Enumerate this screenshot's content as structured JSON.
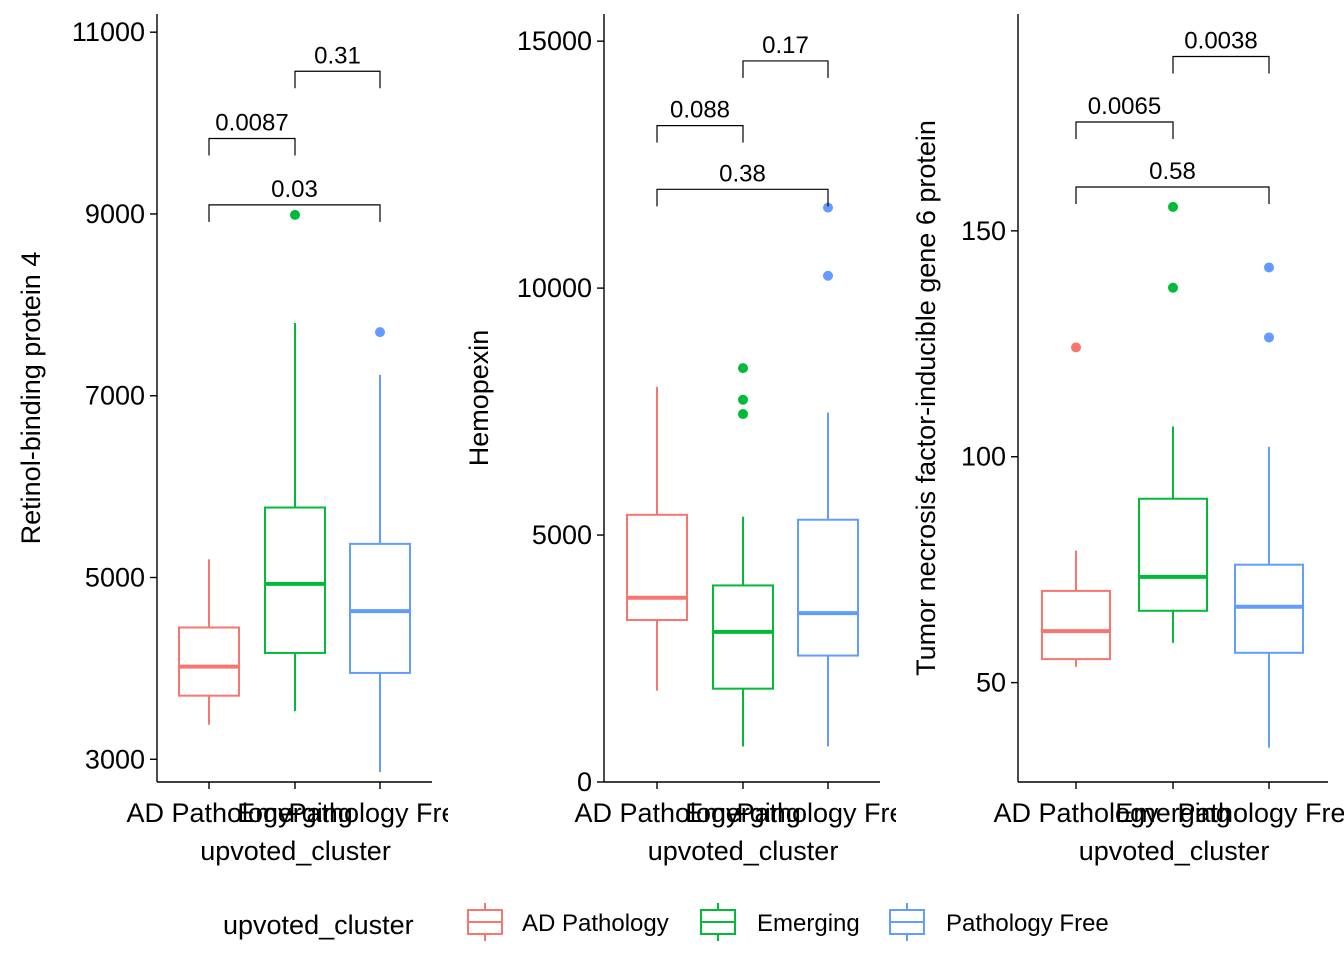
{
  "chart_data": [
    {
      "type": "boxplot",
      "xlabel": "upvoted_cluster",
      "ylabel": "Retinol-binding protein 4",
      "categories": [
        "AD Pathology",
        "Emerging",
        "Pathology Free"
      ],
      "tick_labels": [
        "AD Pathology",
        "Emerging",
        "Pathology Free"
      ],
      "ylim": [
        2750,
        11200
      ],
      "yticks": [
        3000,
        5000,
        7000,
        9000,
        11000
      ],
      "boxes": [
        {
          "group": "AD Pathology",
          "whisker_low": 3380,
          "q1": 3700,
          "median": 4020,
          "q3": 4450,
          "whisker_high": 5200,
          "outliers": []
        },
        {
          "group": "Emerging",
          "whisker_low": 3530,
          "q1": 4170,
          "median": 4930,
          "q3": 5770,
          "whisker_high": 7800,
          "outliers": [
            8990
          ]
        },
        {
          "group": "Pathology Free",
          "whisker_low": 2860,
          "q1": 3950,
          "median": 4630,
          "q3": 5370,
          "whisker_high": 7230,
          "outliers": [
            7700
          ]
        }
      ],
      "comparisons": [
        {
          "groups": [
            "AD Pathology",
            "Emerging"
          ],
          "p": "0.0087",
          "bracket_y": 9830
        },
        {
          "groups": [
            "Emerging",
            "Pathology Free"
          ],
          "p": "0.31",
          "bracket_y": 10570
        },
        {
          "groups": [
            "AD Pathology",
            "Pathology Free"
          ],
          "p": "0.03",
          "bracket_y": 9100
        }
      ]
    },
    {
      "type": "boxplot",
      "xlabel": "upvoted_cluster",
      "ylabel": "Hemopexin",
      "categories": [
        "AD Pathology",
        "Emerging",
        "Pathology Free"
      ],
      "tick_labels": [
        "AD Pathology",
        "Emerging",
        "Pathology Free"
      ],
      "ylim": [
        0,
        15550
      ],
      "yticks": [
        0,
        5000,
        10000,
        15000
      ],
      "boxes": [
        {
          "group": "AD Pathology",
          "whisker_low": 1850,
          "q1": 3280,
          "median": 3730,
          "q3": 5410,
          "whisker_high": 8000,
          "outliers": []
        },
        {
          "group": "Emerging",
          "whisker_low": 720,
          "q1": 1890,
          "median": 3040,
          "q3": 3980,
          "whisker_high": 5370,
          "outliers": [
            7450,
            7740,
            8380
          ]
        },
        {
          "group": "Pathology Free",
          "whisker_low": 720,
          "q1": 2560,
          "median": 3420,
          "q3": 5310,
          "whisker_high": 7480,
          "outliers": [
            10250,
            11630
          ]
        }
      ],
      "comparisons": [
        {
          "groups": [
            "AD Pathology",
            "Emerging"
          ],
          "p": "0.088",
          "bracket_y": 13290
        },
        {
          "groups": [
            "Emerging",
            "Pathology Free"
          ],
          "p": "0.17",
          "bracket_y": 14600
        },
        {
          "groups": [
            "AD Pathology",
            "Pathology Free"
          ],
          "p": "0.38",
          "bracket_y": 12000
        }
      ]
    },
    {
      "type": "boxplot",
      "xlabel": "upvoted_cluster",
      "ylabel": "Tumor necrosis factor-inducible gene 6 protein",
      "categories": [
        "AD Pathology",
        "Emerging",
        "Pathology Free"
      ],
      "tick_labels": [
        "AD Pathology",
        "Emerging",
        "Pathology Free"
      ],
      "ylim": [
        28,
        198
      ],
      "yticks": [
        50,
        100,
        150
      ],
      "boxes": [
        {
          "group": "AD Pathology",
          "whisker_low": 53.5,
          "q1": 55.2,
          "median": 61.4,
          "q3": 70.3,
          "whisker_high": 79.2,
          "outliers": [
            124.2
          ]
        },
        {
          "group": "Emerging",
          "whisker_low": 58.8,
          "q1": 65.9,
          "median": 73.4,
          "q3": 90.7,
          "whisker_high": 106.7,
          "outliers": [
            137.4,
            155.3
          ]
        },
        {
          "group": "Pathology Free",
          "whisker_low": 35.6,
          "q1": 56.6,
          "median": 66.8,
          "q3": 76.1,
          "whisker_high": 102.2,
          "outliers": [
            126.4,
            141.9
          ]
        }
      ],
      "comparisons": [
        {
          "groups": [
            "AD Pathology",
            "Emerging"
          ],
          "p": "0.0065",
          "bracket_y": 174.1
        },
        {
          "groups": [
            "Emerging",
            "Pathology Free"
          ],
          "p": "0.0038",
          "bracket_y": 188.6
        },
        {
          "groups": [
            "AD Pathology",
            "Pathology Free"
          ],
          "p": "0.58",
          "bracket_y": 159.7
        }
      ]
    }
  ],
  "legend": {
    "title": "upvoted_cluster",
    "position": "bottom",
    "items": [
      {
        "label": "AD Pathology",
        "color": "#F8766D"
      },
      {
        "label": "Emerging",
        "color": "#00BA38"
      },
      {
        "label": "Pathology Free",
        "color": "#619CFF"
      }
    ]
  },
  "colors": {
    "AD Pathology": "#F8766D",
    "Emerging": "#00BA38",
    "Pathology Free": "#619CFF"
  }
}
